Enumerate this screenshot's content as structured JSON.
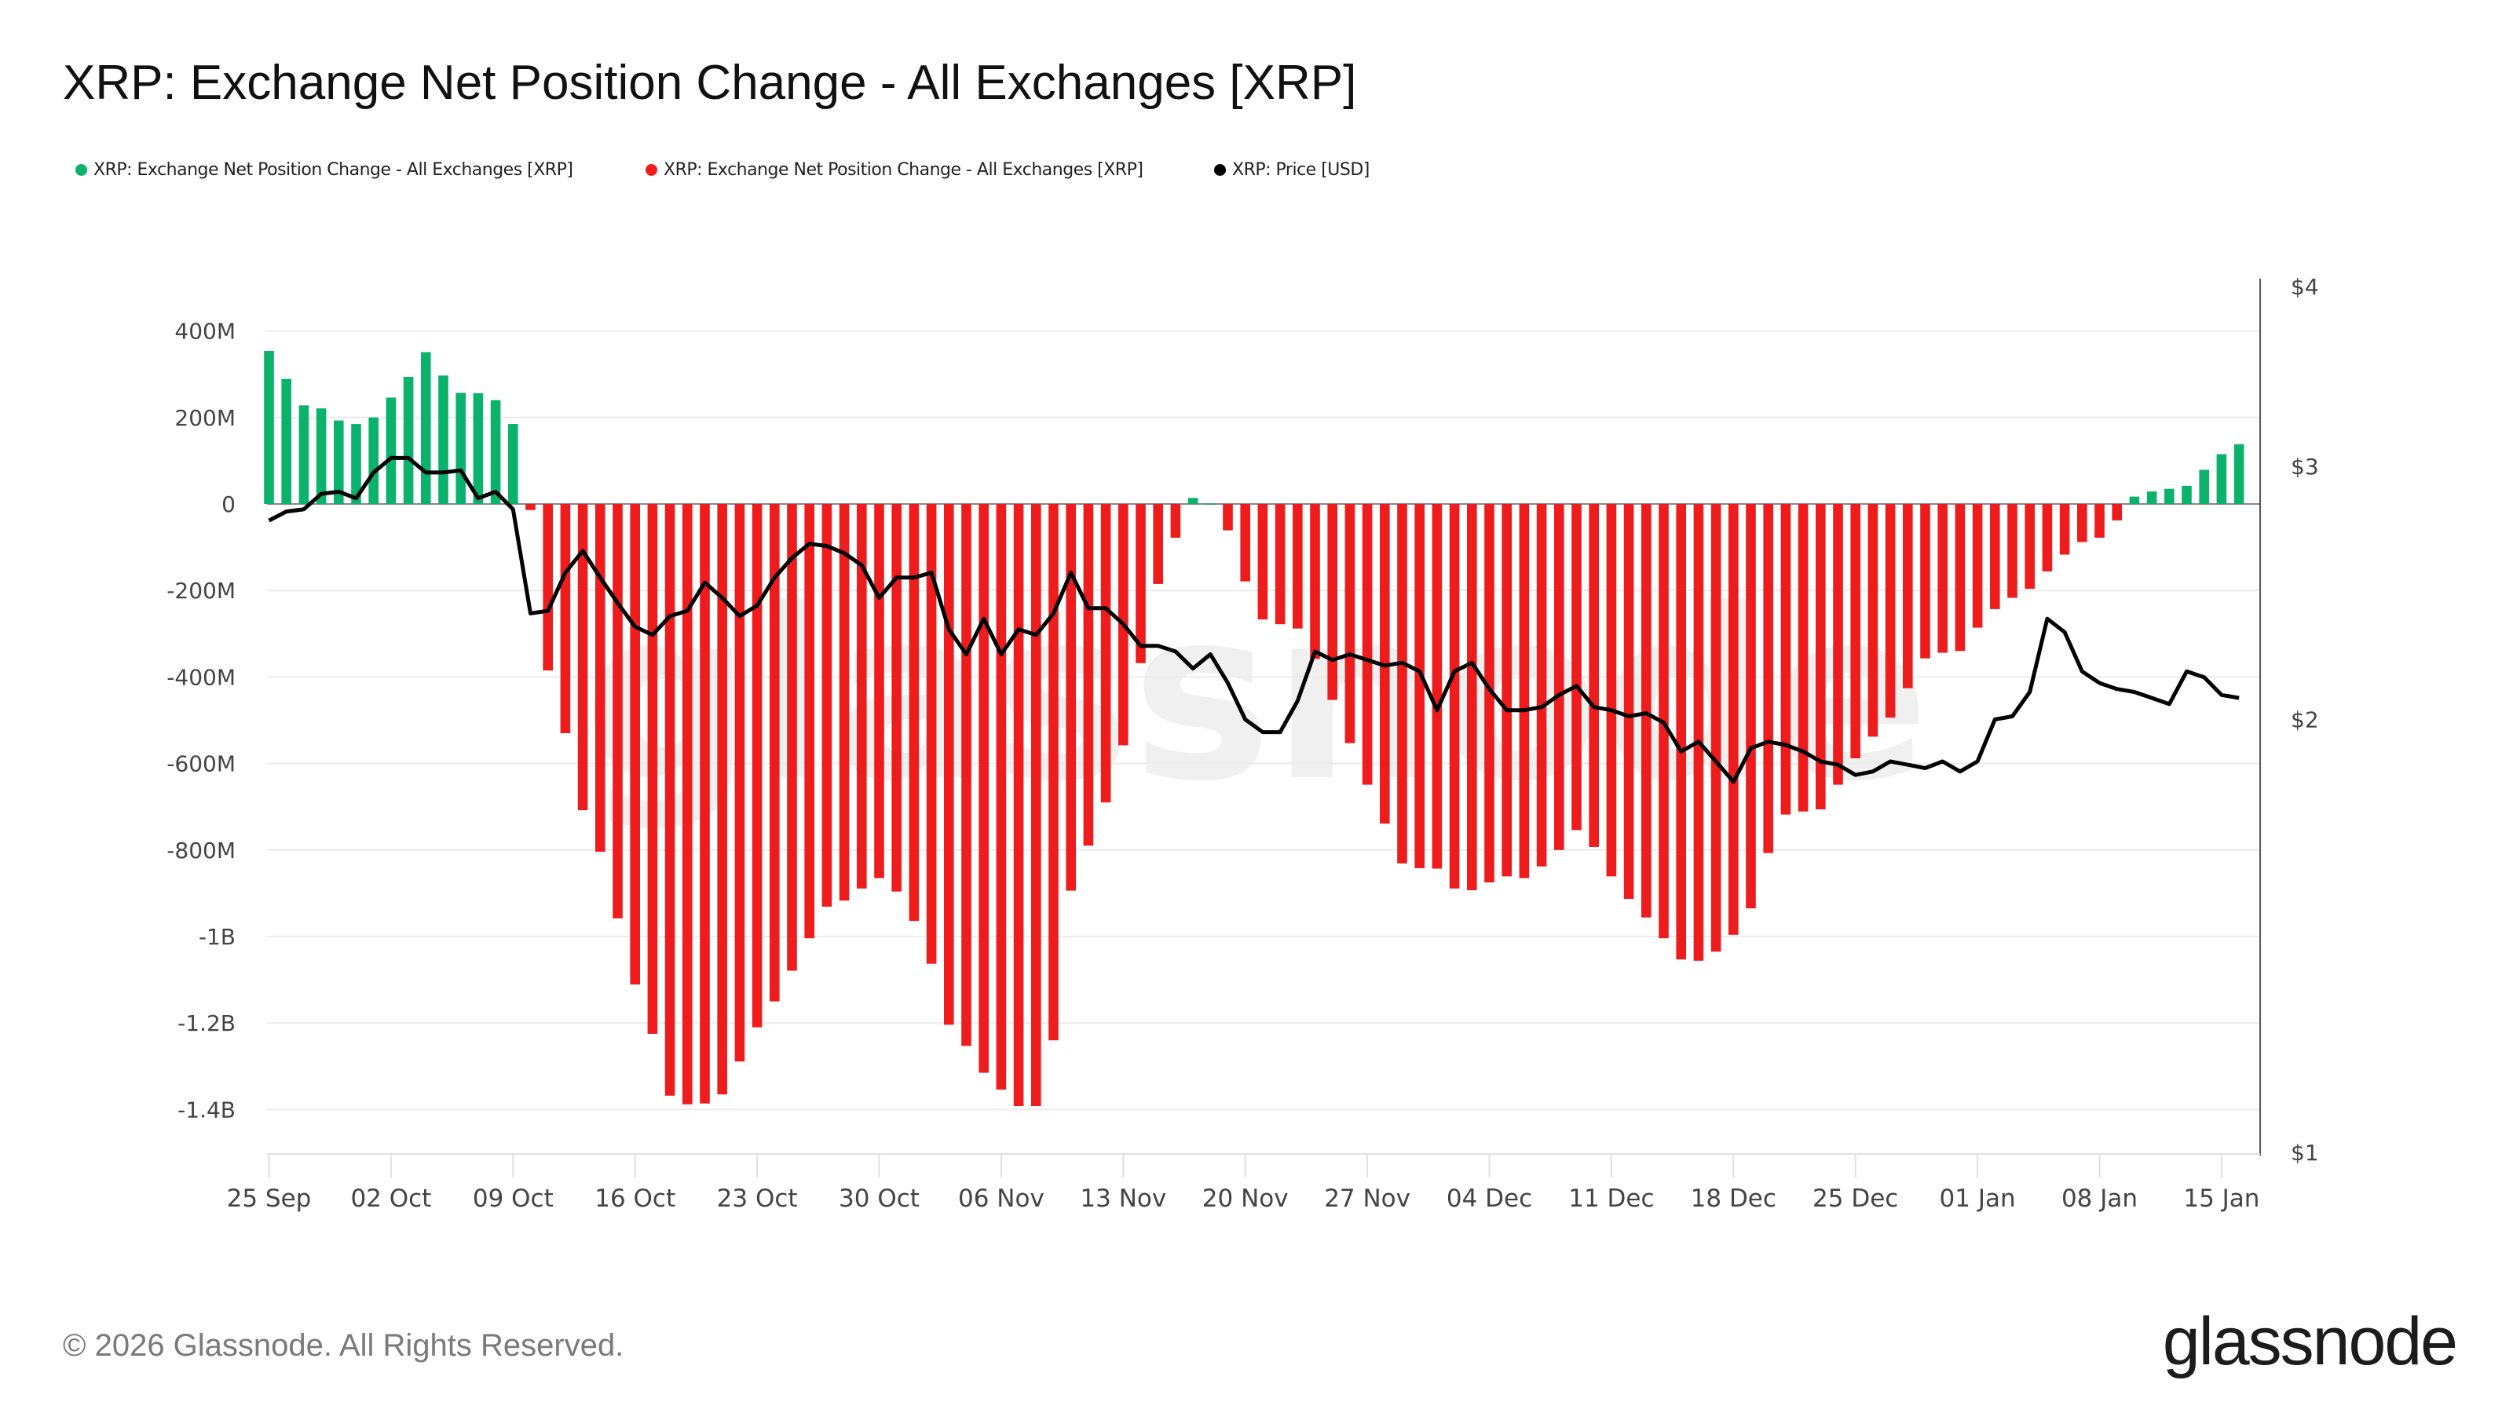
{
  "title": "XRP: Exchange Net Position Change - All Exchanges [XRP]",
  "legend": [
    {
      "label": "XRP: Exchange Net Position Change - All Exchanges [XRP]",
      "color": "#0ab26b"
    },
    {
      "label": "XRP: Exchange Net Position Change - All Exchanges [XRP]",
      "color": "#ee1c1c"
    },
    {
      "label": "XRP: Price [USD]",
      "color": "#000000"
    }
  ],
  "footer": {
    "copyright": "© 2026 Glassnode. All Rights Reserved.",
    "logo": "glassnode",
    "watermark": "glassnode"
  },
  "chart_data": {
    "type": "bar+line",
    "title": "XRP: Exchange Net Position Change - All Exchanges [XRP]",
    "start_date": "25 Sep",
    "x_tick_labels": [
      "25 Sep",
      "02 Oct",
      "09 Oct",
      "16 Oct",
      "23 Oct",
      "30 Oct",
      "06 Nov",
      "13 Nov",
      "20 Nov",
      "27 Nov",
      "04 Dec",
      "11 Dec",
      "18 Dec",
      "25 Dec",
      "01 Jan",
      "08 Jan",
      "15 Jan"
    ],
    "y_left": {
      "ticks": [
        400,
        200,
        0,
        -200,
        -400,
        -600,
        -800,
        -1000,
        -1200,
        -1400
      ],
      "tick_labels": [
        "400M",
        "200M",
        "0",
        "-200M",
        "-400M",
        "-600M",
        "-800M",
        "-1B",
        "-1.2B",
        "-1.4B"
      ],
      "range_millions": [
        -1500,
        400
      ],
      "unit": "M XRP"
    },
    "y_right": {
      "scale": "log",
      "ticks": [
        4,
        3,
        2,
        1
      ],
      "tick_labels": [
        "$4",
        "$3",
        "$2",
        "$1"
      ],
      "range": [
        1,
        4
      ]
    },
    "grid": true,
    "legend_position": "top-left",
    "positive_color": "#0ab26b",
    "negative_color": "#ee1c1c",
    "price_color": "#000000",
    "net_position_change_millions": [
      354,
      289,
      228,
      221,
      193,
      185,
      200,
      246,
      294,
      351,
      297,
      257,
      256,
      240,
      185,
      -14,
      -385,
      -530,
      -708,
      -804,
      -958,
      -1111,
      -1225,
      -1368,
      -1388,
      -1386,
      -1365,
      -1289,
      -1210,
      -1150,
      -1079,
      -1004,
      -931,
      -917,
      -889,
      -865,
      -896,
      -964,
      -1063,
      -1204,
      -1253,
      -1315,
      -1354,
      -1392,
      -1392,
      -1240,
      -894,
      -790,
      -690,
      -558,
      -368,
      -185,
      -78,
      14,
      1,
      -61,
      -179,
      -267,
      -278,
      -288,
      -358,
      -453,
      -553,
      -649,
      -739,
      -831,
      -842,
      -843,
      -889,
      -893,
      -875,
      -861,
      -865,
      -838,
      -800,
      -754,
      -793,
      -861,
      -913,
      -956,
      -1004,
      -1053,
      -1056,
      -1035,
      -996,
      -935,
      -807,
      -718,
      -711,
      -706,
      -649,
      -588,
      -538,
      -494,
      -426,
      -357,
      -344,
      -340,
      -286,
      -243,
      -217,
      -196,
      -156,
      -117,
      -88,
      -78,
      -38,
      17,
      29,
      35,
      42,
      79,
      115,
      138
    ],
    "price_usd": [
      2.75,
      2.79,
      2.8,
      2.87,
      2.88,
      2.85,
      2.97,
      3.04,
      3.04,
      2.97,
      2.97,
      2.98,
      2.85,
      2.88,
      2.8,
      2.37,
      2.38,
      2.53,
      2.62,
      2.51,
      2.41,
      2.32,
      2.29,
      2.36,
      2.38,
      2.49,
      2.43,
      2.36,
      2.4,
      2.51,
      2.59,
      2.65,
      2.64,
      2.61,
      2.56,
      2.43,
      2.51,
      2.51,
      2.53,
      2.31,
      2.22,
      2.35,
      2.22,
      2.31,
      2.29,
      2.37,
      2.53,
      2.39,
      2.39,
      2.33,
      2.25,
      2.25,
      2.23,
      2.17,
      2.22,
      2.12,
      2.0,
      1.96,
      1.96,
      2.06,
      2.23,
      2.2,
      2.22,
      2.2,
      2.18,
      2.19,
      2.16,
      2.03,
      2.16,
      2.19,
      2.1,
      2.03,
      2.03,
      2.04,
      2.08,
      2.11,
      2.04,
      2.03,
      2.01,
      2.02,
      1.99,
      1.9,
      1.93,
      1.87,
      1.81,
      1.91,
      1.93,
      1.92,
      1.9,
      1.87,
      1.86,
      1.83,
      1.84,
      1.87,
      1.86,
      1.85,
      1.87,
      1.84,
      1.87,
      2.0,
      2.01,
      2.09,
      2.35,
      2.3,
      2.16,
      2.12,
      2.1,
      2.09,
      2.07,
      2.05,
      2.16,
      2.14,
      2.08,
      2.07
    ]
  }
}
